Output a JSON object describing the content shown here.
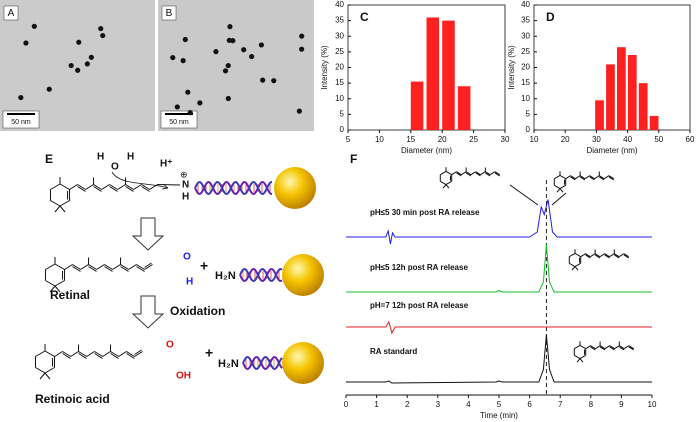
{
  "figure": {
    "panel_a": {
      "label": "A",
      "scale_bar": "50 nm"
    },
    "panel_b": {
      "label": "B",
      "scale_bar": "50 nm"
    },
    "panel_e": {
      "label": "E",
      "water_h1": "H",
      "water_o": "O",
      "water_h2": "H",
      "proton": "H⁺",
      "iminium_n": "N",
      "iminium_h": "H",
      "charge": "⊕",
      "aldehyde_o": "O",
      "aldehyde_h": "H",
      "amine1": "H₂N",
      "plus1": "+",
      "retinal": "Retinal",
      "oxidation": "Oxidation",
      "acid_o": "O",
      "acid_oh": "OH",
      "amine2": "H₂N",
      "plus2": "+",
      "retinoic_acid": "Retinoic acid"
    }
  },
  "chart_data": [
    {
      "type": "bar",
      "panel_label": "C",
      "x": [
        16,
        18.5,
        21,
        23.5
      ],
      "values": [
        15.5,
        36,
        35,
        14
      ],
      "color": "#ff2020",
      "xlim": [
        5,
        30
      ],
      "xticks": [
        5,
        10,
        15,
        20,
        25,
        30
      ],
      "ylim": [
        0,
        40
      ],
      "yticks": [
        0,
        5,
        10,
        15,
        20,
        25,
        30,
        35,
        40
      ],
      "xlabel": "Diameter (nm)",
      "ylabel": "Intensity (%)"
    },
    {
      "type": "bar",
      "panel_label": "D",
      "x": [
        31,
        34.5,
        38,
        41.5,
        45,
        48.5
      ],
      "values": [
        9.5,
        21,
        26.5,
        24,
        15,
        4.5
      ],
      "color": "#ff2020",
      "xlim": [
        10,
        60
      ],
      "xticks": [
        10,
        20,
        30,
        40,
        50,
        60
      ],
      "ylim": [
        0,
        40
      ],
      "yticks": [
        0,
        5,
        10,
        15,
        20,
        25,
        30,
        35,
        40
      ],
      "xlabel": "Diameter (nm)",
      "ylabel": "Intensity (%)"
    },
    {
      "type": "line",
      "panel_label": "F",
      "xlabel": "Time (min)",
      "xlim": [
        0,
        10
      ],
      "xticks": [
        0,
        1,
        2,
        3,
        4,
        5,
        6,
        7,
        8,
        9,
        10
      ],
      "reference_x": 6.55,
      "series": [
        {
          "name": "pH≤5  30 min post RA release",
          "color": "#2020e0",
          "x": [
            0,
            1.3,
            1.38,
            1.45,
            1.52,
            1.6,
            6.0,
            6.25,
            6.38,
            6.48,
            6.6,
            6.75,
            6.9,
            10
          ],
          "values": [
            0,
            0,
            12,
            -14,
            8,
            0,
            0,
            10,
            60,
            45,
            75,
            10,
            0,
            0
          ]
        },
        {
          "name": "pH≤5  12h post RA release",
          "color": "#10c020",
          "x": [
            0,
            4.9,
            5.0,
            5.1,
            6.3,
            6.45,
            6.55,
            6.65,
            6.8,
            10
          ],
          "values": [
            0,
            0,
            3,
            0,
            0,
            20,
            95,
            20,
            0,
            0
          ]
        },
        {
          "name": "pH=7  12h post RA release",
          "color": "#e02020",
          "x": [
            0,
            1.3,
            1.4,
            1.5,
            1.6,
            10
          ],
          "values": [
            0,
            0,
            10,
            -12,
            0,
            0
          ]
        },
        {
          "name": "RA standard",
          "color": "#111111",
          "x": [
            0,
            1.3,
            1.4,
            1.5,
            4.9,
            5.0,
            5.1,
            6.3,
            6.45,
            6.55,
            6.65,
            6.8,
            10
          ],
          "values": [
            0,
            0,
            2,
            -2,
            0,
            2,
            0,
            0,
            25,
            95,
            25,
            0,
            0
          ]
        }
      ]
    }
  ]
}
